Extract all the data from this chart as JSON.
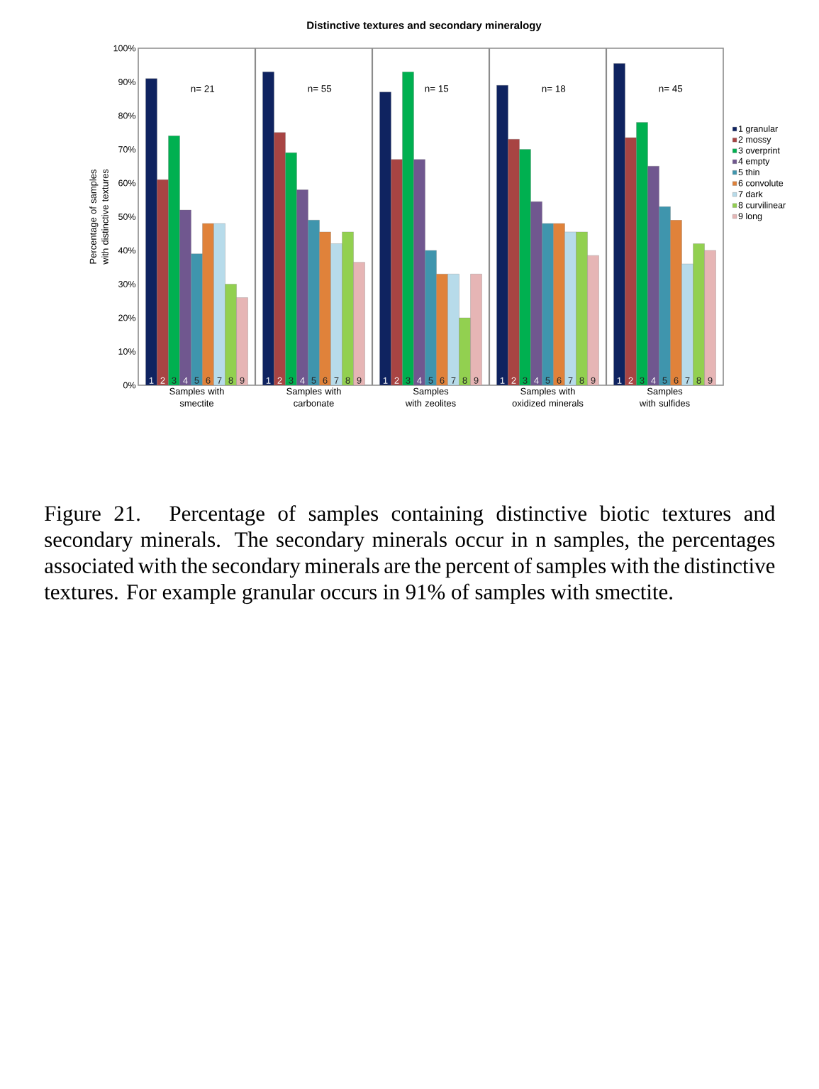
{
  "chart_data": {
    "type": "bar",
    "title": "Distinctive textures and secondary mineralogy",
    "ylabel": "Percentage of samples with distinctive textures",
    "categories": [
      "Samples with smectite",
      "Samples with carbonate",
      "Samples with zeolites",
      "Samples with oxidized minerals",
      "Samples with sulfides"
    ],
    "series": [
      {
        "name": "1 granular",
        "color": "#0f2360",
        "values": [
          91,
          93,
          87,
          89,
          95.5
        ]
      },
      {
        "name": "2 mossy",
        "color": "#a84443",
        "values": [
          61,
          75,
          67,
          73,
          73.5
        ]
      },
      {
        "name": "3 overprint",
        "color": "#00b050",
        "values": [
          74,
          69,
          93,
          70,
          78
        ]
      },
      {
        "name": "4 empty",
        "color": "#70578f",
        "values": [
          52,
          58,
          67,
          54.5,
          65
        ]
      },
      {
        "name": "5 thin",
        "color": "#3f95ad",
        "values": [
          39,
          49,
          40,
          48,
          53
        ]
      },
      {
        "name": "6 convolute",
        "color": "#e0823a",
        "values": [
          48,
          45.5,
          33,
          48,
          49
        ]
      },
      {
        "name": "7 dark",
        "color": "#b7dbea",
        "values": [
          48,
          42,
          33,
          45.5,
          36
        ]
      },
      {
        "name": "8 curvilinear",
        "color": "#92d050",
        "values": [
          30,
          45.5,
          20,
          45.5,
          42
        ]
      },
      {
        "name": "9 long",
        "color": "#e6b5b5",
        "values": [
          26,
          36.5,
          33,
          38.5,
          40
        ]
      }
    ],
    "ylim": [
      0,
      100
    ],
    "yticks": [
      {
        "value": 0,
        "label": "0%"
      },
      {
        "value": 10,
        "label": "10%"
      },
      {
        "value": 20,
        "label": "20%"
      },
      {
        "value": 30,
        "label": "30%"
      },
      {
        "value": 40,
        "label": "40%"
      },
      {
        "value": 50,
        "label": "50%"
      },
      {
        "value": 60,
        "label": "60%"
      },
      {
        "value": 70,
        "label": "70%"
      },
      {
        "value": 80,
        "label": "80%"
      },
      {
        "value": 90,
        "label": "90%"
      },
      {
        "value": 100,
        "label": "100%"
      }
    ],
    "legend": "right",
    "annotations": [
      "n= 21",
      "n= 55",
      "n= 15",
      "n= 18",
      "n= 45",
      "1",
      "2",
      "3",
      "4",
      "5",
      "6",
      "7",
      "8",
      "9",
      "1",
      "2",
      "3",
      "4",
      "5",
      "6",
      "7",
      "8",
      "9",
      "1",
      "2",
      "3",
      "4",
      "5",
      "6",
      "7",
      "8",
      "9",
      "1",
      "2",
      "3",
      "4",
      "5",
      "6",
      "7",
      "8",
      "9",
      "1",
      "2",
      "3",
      "4",
      "5",
      "6",
      "7",
      "8",
      "9",
      "Figure 21. Percentage of samples containing distinctive biotic textures and secondary minerals. The secondary minerals occur in n samples, the percentages associated with the secondary minerals are the percent of samples with the distinctive textures. For example granular occurs in 91% of samples with smectite."
    ]
  }
}
